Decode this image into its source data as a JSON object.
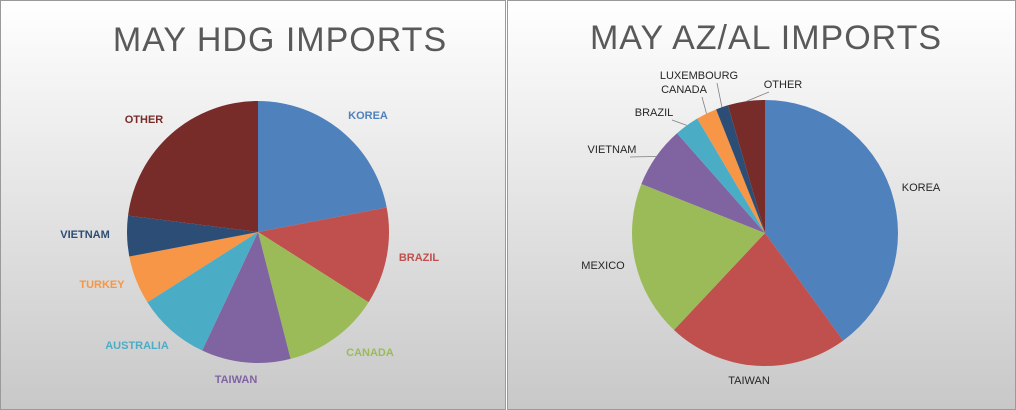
{
  "chart_data": [
    {
      "type": "pie",
      "title": "MAY HDG IMPORTS",
      "categories": [
        "KOREA",
        "BRAZIL",
        "CANADA",
        "TAIWAN",
        "AUSTRALIA",
        "TURKEY",
        "VIETNAM",
        "OTHER"
      ],
      "values": [
        22,
        12,
        12,
        11,
        9,
        6,
        5,
        23
      ],
      "colors": [
        "#4f81bd",
        "#c0504d",
        "#9bbb59",
        "#8064a2",
        "#4bacc6",
        "#f79646",
        "#2c4d75",
        "#772c2a"
      ]
    },
    {
      "type": "pie",
      "title": "MAY AZ/AL IMPORTS",
      "categories": [
        "KOREA",
        "TAIWAN",
        "MEXICO",
        "VIETNAM",
        "BRAZIL",
        "CANADA",
        "LUXEMBOURG",
        "OTHER"
      ],
      "values": [
        40,
        22,
        19,
        7.5,
        3,
        2.5,
        1.5,
        4.5
      ],
      "colors": [
        "#4f81bd",
        "#c0504d",
        "#9bbb59",
        "#8064a2",
        "#4bacc6",
        "#f79646",
        "#2c4d75",
        "#772c2a"
      ]
    }
  ]
}
